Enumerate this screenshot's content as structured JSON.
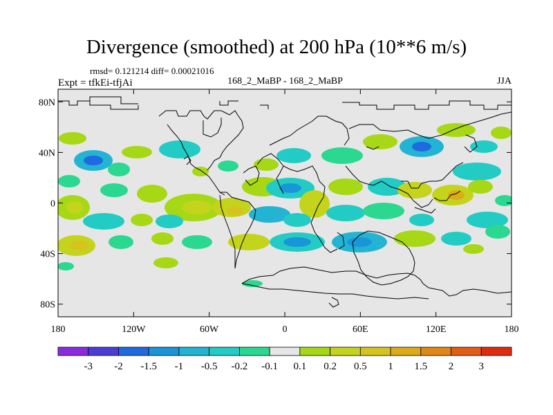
{
  "title": "Divergence (smoothed) at 200 hPa (10**6 m/s)",
  "stats_text": "rmsd= 0.121214 diff= 0.00021016",
  "expt_text": "Expt = tfkEi-tfjAi",
  "center_label": "168_2_MaBP - 168_2_MaBP",
  "season": "JJA",
  "map": {
    "projection": "cylindrical-equidistant",
    "lon_range": [
      -180,
      180
    ],
    "lat_range": [
      -90,
      90
    ],
    "background_color": "#e6e6e6",
    "coastline_color": "#000000",
    "lat_ticks": [
      {
        "value": 80,
        "label": "80N"
      },
      {
        "value": 40,
        "label": "40N"
      },
      {
        "value": 0,
        "label": "0"
      },
      {
        "value": -40,
        "label": "40S"
      },
      {
        "value": -80,
        "label": "80S"
      }
    ],
    "lon_ticks": [
      {
        "value": -180,
        "label": "180"
      },
      {
        "value": -120,
        "label": "120W"
      },
      {
        "value": -60,
        "label": "60W"
      },
      {
        "value": 0,
        "label": "0"
      },
      {
        "value": 60,
        "label": "60E"
      },
      {
        "value": 120,
        "label": "120E"
      },
      {
        "value": 180,
        "label": "180"
      }
    ]
  },
  "colorbar": {
    "colors": [
      "#8a2be2",
      "#4b3cd8",
      "#1f6ae0",
      "#1996d8",
      "#22b4d2",
      "#22ccc4",
      "#2bd88f",
      "#e6e6e6",
      "#a6d816",
      "#c4d41c",
      "#d7c31d",
      "#dcab18",
      "#e08717",
      "#e35b15",
      "#e12a12"
    ],
    "labels": [
      "-3",
      "-2",
      "-1.5",
      "-1",
      "-0.5",
      "-0.2",
      "-0.1",
      "0.1",
      "0.2",
      "0.5",
      "1",
      "1.5",
      "2",
      "3"
    ]
  }
}
